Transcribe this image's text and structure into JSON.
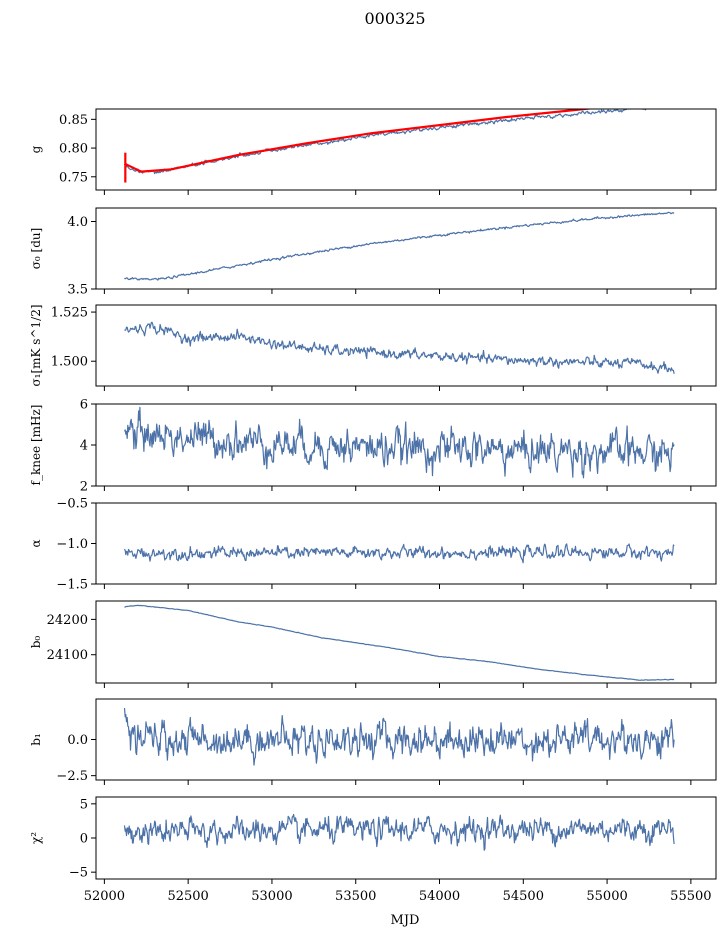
{
  "figure": {
    "title": "000325"
  },
  "chart_data": {
    "type": "line",
    "xlabel": "MJD",
    "xlim": [
      51950,
      55650
    ],
    "xticks": [
      52000,
      52500,
      53000,
      53500,
      54000,
      54500,
      55000,
      55500
    ],
    "xtick_labels": [
      "52000",
      "52500",
      "53000",
      "53500",
      "54000",
      "54500",
      "55000",
      "55500"
    ],
    "x_start": 52120,
    "x_end": 55400,
    "line_color": "#4c72a8",
    "overlay_color": "#ff0000",
    "panels": [
      {
        "id": "g",
        "ylabel": "g",
        "ylim": [
          0.727,
          0.868
        ],
        "yticks": [
          0.75,
          0.8,
          0.85
        ],
        "ytick_labels": [
          "0.75",
          "0.80",
          "0.85"
        ],
        "trend": [
          [
            52120,
            0.77
          ],
          [
            52160,
            0.762
          ],
          [
            52220,
            0.757
          ],
          [
            52300,
            0.758
          ],
          [
            52500,
            0.769
          ],
          [
            52800,
            0.786
          ],
          [
            53200,
            0.805
          ],
          [
            53600,
            0.822
          ],
          [
            54000,
            0.836
          ],
          [
            54500,
            0.851
          ],
          [
            55000,
            0.864
          ],
          [
            55400,
            0.874
          ]
        ],
        "noise": 0.0015,
        "overlay": [
          [
            52120,
            0.773
          ],
          [
            52220,
            0.759
          ],
          [
            52400,
            0.763
          ],
          [
            52800,
            0.788
          ],
          [
            53200,
            0.808
          ],
          [
            53600,
            0.826
          ],
          [
            54000,
            0.84
          ],
          [
            54400,
            0.854
          ],
          [
            54800,
            0.866
          ],
          [
            55000,
            0.872
          ]
        ],
        "overlay_spike_x": 52125,
        "overlay_spike_range": [
          0.74,
          0.792
        ]
      },
      {
        "id": "sigma0",
        "ylabel": "σ₀ [du]",
        "ylim": [
          3.5,
          4.1
        ],
        "yticks": [
          3.5,
          4.0
        ],
        "ytick_labels": [
          "3.5",
          "4.0"
        ],
        "trend": [
          [
            52120,
            3.585
          ],
          [
            52200,
            3.568
          ],
          [
            52350,
            3.575
          ],
          [
            52600,
            3.63
          ],
          [
            53000,
            3.72
          ],
          [
            53500,
            3.82
          ],
          [
            54000,
            3.9
          ],
          [
            54500,
            3.97
          ],
          [
            55000,
            4.03
          ],
          [
            55400,
            4.065
          ]
        ],
        "noise": 0.004
      },
      {
        "id": "sigma1",
        "ylabel": "σ₁[mK s^1/2]",
        "ylim": [
          1.4874,
          1.5286
        ],
        "yticks": [
          1.5,
          1.525
        ],
        "ytick_labels": [
          "1.500",
          "1.525"
        ],
        "trend": [
          [
            52120,
            1.5158
          ],
          [
            52300,
            1.5175
          ],
          [
            52500,
            1.5115
          ],
          [
            52800,
            1.5128
          ],
          [
            53000,
            1.509
          ],
          [
            53300,
            1.5058
          ],
          [
            53800,
            1.5035
          ],
          [
            54300,
            1.501
          ],
          [
            54800,
            1.4995
          ],
          [
            55200,
            1.4985
          ],
          [
            55400,
            1.4955
          ]
        ],
        "noise": 0.0012
      },
      {
        "id": "fknee",
        "ylabel": "f_knee [mHz]",
        "ylim": [
          2,
          6
        ],
        "yticks": [
          2,
          4,
          6
        ],
        "ytick_labels": [
          "2",
          "4",
          "6"
        ],
        "trend": [
          [
            52120,
            4.7
          ],
          [
            52400,
            4.4
          ],
          [
            53000,
            4.1
          ],
          [
            53500,
            3.9
          ],
          [
            54000,
            3.8
          ],
          [
            55400,
            3.6
          ]
        ],
        "noise": 0.42
      },
      {
        "id": "alpha",
        "ylabel": "α",
        "ylim": [
          -1.5,
          -0.5
        ],
        "yticks": [
          -1.5,
          -1.0,
          -0.5
        ],
        "ytick_labels": [
          "−1.5",
          "−1.0",
          "−0.5"
        ],
        "trend": [
          [
            52120,
            -1.12
          ],
          [
            55400,
            -1.11
          ]
        ],
        "noise": 0.035
      },
      {
        "id": "b0",
        "ylabel": "b₀",
        "ylim": [
          24020,
          24252
        ],
        "yticks": [
          24100,
          24200
        ],
        "ytick_labels": [
          "24100",
          "24200"
        ],
        "trend": [
          [
            52120,
            24235
          ],
          [
            52200,
            24240
          ],
          [
            52500,
            24225
          ],
          [
            52800,
            24193
          ],
          [
            53000,
            24178
          ],
          [
            53300,
            24148
          ],
          [
            53700,
            24120
          ],
          [
            54000,
            24095
          ],
          [
            54300,
            24080
          ],
          [
            54600,
            24058
          ],
          [
            54900,
            24042
          ],
          [
            55200,
            24028
          ],
          [
            55400,
            24030
          ]
        ],
        "noise": 0.35
      },
      {
        "id": "b1",
        "ylabel": "b₁",
        "ylim": [
          -2.8,
          2.8
        ],
        "yticks": [
          -2.5,
          0.0
        ],
        "ytick_labels": [
          "−2.5",
          "0.0"
        ],
        "trend": [
          [
            52120,
            0.0
          ],
          [
            55400,
            0.0
          ]
        ],
        "noise": 0.55,
        "start_spike": [
          [
            52120,
            2.1
          ],
          [
            52135,
            1.2
          ],
          [
            52150,
            0.5
          ]
        ]
      },
      {
        "id": "chi2",
        "ylabel": "χ²",
        "ylim": [
          -6.0,
          6.0
        ],
        "yticks": [
          -5,
          0,
          5
        ],
        "ytick_labels": [
          "−5",
          "0",
          "5"
        ],
        "trend": [
          [
            52120,
            0.8
          ],
          [
            53000,
            1.0
          ],
          [
            54000,
            1.2
          ],
          [
            55400,
            1.4
          ]
        ],
        "noise": 0.85
      }
    ]
  }
}
